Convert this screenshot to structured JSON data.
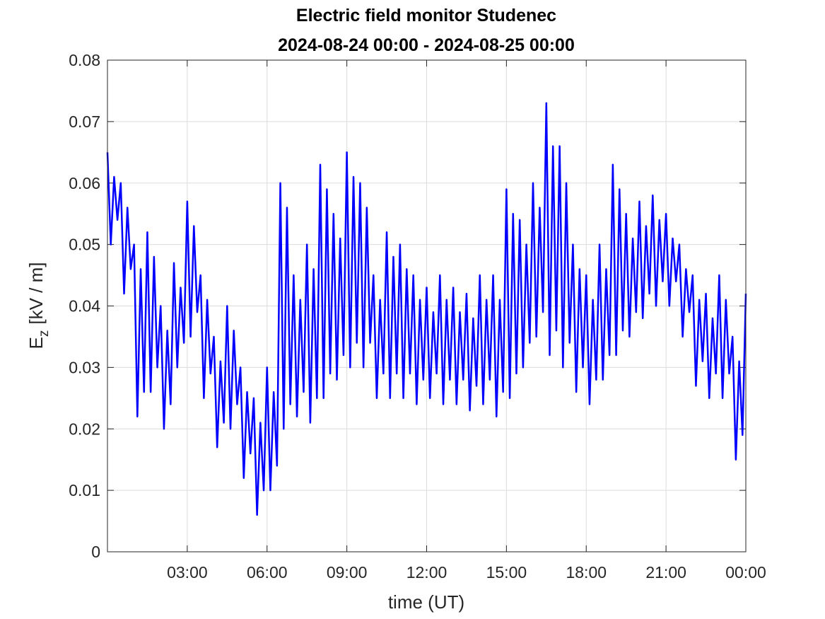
{
  "chart_data": {
    "type": "line",
    "title": "Electric field monitor Studenec",
    "subtitle": "2024-08-24 00:00 - 2024-08-25 00:00",
    "xlabel": "time (UT)",
    "ylabel": [
      "E",
      "z",
      "[kV / m]"
    ],
    "color": "#0000ff",
    "grid": true,
    "xlim": [
      0,
      24
    ],
    "ylim": [
      0,
      0.08
    ],
    "xticks": [
      {
        "value": 3,
        "label": "03:00"
      },
      {
        "value": 6,
        "label": "06:00"
      },
      {
        "value": 9,
        "label": "09:00"
      },
      {
        "value": 12,
        "label": "12:00"
      },
      {
        "value": 15,
        "label": "15:00"
      },
      {
        "value": 18,
        "label": "18:00"
      },
      {
        "value": 21,
        "label": "21:00"
      },
      {
        "value": 24,
        "label": "00:00"
      }
    ],
    "yticks": [
      0,
      0.01,
      0.02,
      0.03,
      0.04,
      0.05,
      0.06,
      0.07,
      0.08
    ],
    "x": [
      0,
      0.125,
      0.25,
      0.375,
      0.5,
      0.625,
      0.75,
      0.875,
      1,
      1.125,
      1.25,
      1.375,
      1.5,
      1.625,
      1.75,
      1.875,
      2,
      2.125,
      2.25,
      2.375,
      2.5,
      2.625,
      2.75,
      2.875,
      3,
      3.125,
      3.25,
      3.375,
      3.5,
      3.625,
      3.75,
      3.875,
      4,
      4.125,
      4.25,
      4.375,
      4.5,
      4.625,
      4.75,
      4.875,
      5,
      5.125,
      5.25,
      5.375,
      5.5,
      5.625,
      5.75,
      5.875,
      6,
      6.125,
      6.25,
      6.375,
      6.5,
      6.625,
      6.75,
      6.875,
      7,
      7.125,
      7.25,
      7.375,
      7.5,
      7.625,
      7.75,
      7.875,
      8,
      8.125,
      8.25,
      8.375,
      8.5,
      8.625,
      8.75,
      8.875,
      9,
      9.125,
      9.25,
      9.375,
      9.5,
      9.625,
      9.75,
      9.875,
      10,
      10.125,
      10.25,
      10.375,
      10.5,
      10.625,
      10.75,
      10.875,
      11,
      11.125,
      11.25,
      11.375,
      11.5,
      11.625,
      11.75,
      11.875,
      12,
      12.125,
      12.25,
      12.375,
      12.5,
      12.625,
      12.75,
      12.875,
      13,
      13.125,
      13.25,
      13.375,
      13.5,
      13.625,
      13.75,
      13.875,
      14,
      14.125,
      14.25,
      14.375,
      14.5,
      14.625,
      14.75,
      14.875,
      15,
      15.125,
      15.25,
      15.375,
      15.5,
      15.625,
      15.75,
      15.875,
      16,
      16.125,
      16.25,
      16.375,
      16.5,
      16.625,
      16.75,
      16.875,
      17,
      17.125,
      17.25,
      17.375,
      17.5,
      17.625,
      17.75,
      17.875,
      18,
      18.125,
      18.25,
      18.375,
      18.5,
      18.625,
      18.75,
      18.875,
      19,
      19.125,
      19.25,
      19.375,
      19.5,
      19.625,
      19.75,
      19.875,
      20,
      20.125,
      20.25,
      20.375,
      20.5,
      20.625,
      20.75,
      20.875,
      21,
      21.125,
      21.25,
      21.375,
      21.5,
      21.625,
      21.75,
      21.875,
      22,
      22.125,
      22.25,
      22.375,
      22.5,
      22.625,
      22.75,
      22.875,
      23,
      23.125,
      23.25,
      23.375,
      23.5,
      23.625,
      23.75,
      23.875,
      24
    ],
    "values": [
      0.065,
      0.05,
      0.061,
      0.054,
      0.06,
      0.042,
      0.056,
      0.046,
      0.05,
      0.022,
      0.046,
      0.026,
      0.052,
      0.026,
      0.048,
      0.03,
      0.04,
      0.02,
      0.036,
      0.024,
      0.047,
      0.03,
      0.043,
      0.034,
      0.057,
      0.035,
      0.053,
      0.039,
      0.045,
      0.025,
      0.041,
      0.029,
      0.035,
      0.017,
      0.031,
      0.021,
      0.04,
      0.02,
      0.036,
      0.024,
      0.03,
      0.012,
      0.026,
      0.016,
      0.025,
      0.006,
      0.021,
      0.01,
      0.03,
      0.01,
      0.026,
      0.014,
      0.06,
      0.02,
      0.056,
      0.024,
      0.045,
      0.022,
      0.041,
      0.026,
      0.05,
      0.021,
      0.046,
      0.025,
      0.063,
      0.025,
      0.059,
      0.029,
      0.055,
      0.028,
      0.051,
      0.032,
      0.065,
      0.03,
      0.061,
      0.034,
      0.06,
      0.03,
      0.056,
      0.034,
      0.045,
      0.025,
      0.041,
      0.029,
      0.052,
      0.025,
      0.048,
      0.029,
      0.05,
      0.025,
      0.046,
      0.029,
      0.045,
      0.024,
      0.041,
      0.028,
      0.043,
      0.025,
      0.039,
      0.029,
      0.045,
      0.024,
      0.041,
      0.028,
      0.043,
      0.024,
      0.039,
      0.028,
      0.042,
      0.023,
      0.038,
      0.027,
      0.045,
      0.024,
      0.041,
      0.028,
      0.045,
      0.022,
      0.041,
      0.026,
      0.059,
      0.025,
      0.055,
      0.029,
      0.054,
      0.03,
      0.05,
      0.034,
      0.06,
      0.035,
      0.056,
      0.039,
      0.073,
      0.032,
      0.066,
      0.036,
      0.066,
      0.03,
      0.06,
      0.034,
      0.05,
      0.026,
      0.046,
      0.03,
      0.045,
      0.024,
      0.041,
      0.028,
      0.05,
      0.028,
      0.046,
      0.032,
      0.063,
      0.032,
      0.059,
      0.036,
      0.055,
      0.035,
      0.051,
      0.039,
      0.057,
      0.038,
      0.053,
      0.042,
      0.058,
      0.04,
      0.054,
      0.044,
      0.055,
      0.04,
      0.051,
      0.044,
      0.05,
      0.035,
      0.046,
      0.039,
      0.045,
      0.027,
      0.041,
      0.031,
      0.042,
      0.025,
      0.038,
      0.029,
      0.045,
      0.025,
      0.041,
      0.029,
      0.035,
      0.015,
      0.031,
      0.019,
      0.042
    ]
  }
}
